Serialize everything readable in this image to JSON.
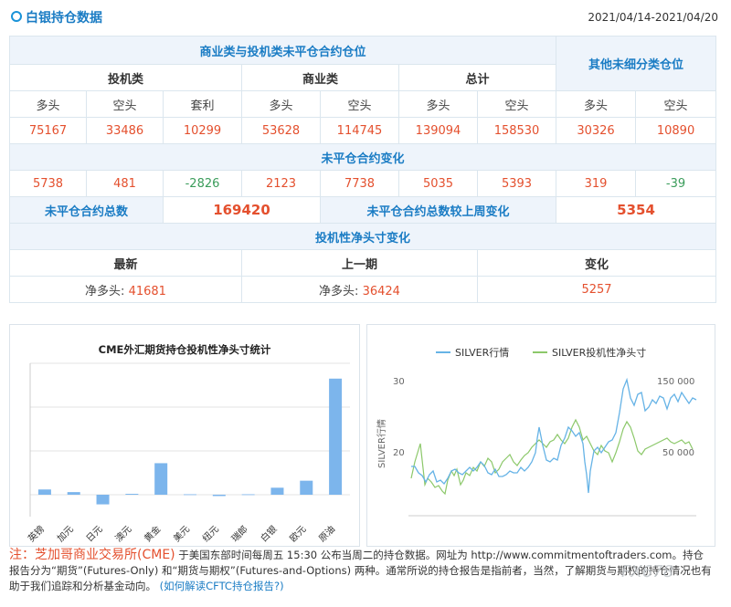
{
  "header": {
    "title": "白银持仓数据",
    "date_range": "2021/04/14-2021/04/20"
  },
  "table": {
    "group_title": "商业类与投机类未平仓合约仓位",
    "other_title": "其他未细分类仓位",
    "subgroups": [
      "投机类",
      "商业类",
      "总计"
    ],
    "columns": [
      "多头",
      "空头",
      "套利",
      "多头",
      "空头",
      "多头",
      "空头",
      "多头",
      "空头"
    ],
    "values": [
      "75167",
      "33486",
      "10299",
      "53628",
      "114745",
      "139094",
      "158530",
      "30326",
      "10890"
    ],
    "change_title": "未平仓合约变化",
    "changes": [
      "5738",
      "481",
      "-2826",
      "2123",
      "7738",
      "5035",
      "5393",
      "319",
      "-39"
    ],
    "total_label": "未平仓合约总数",
    "total_value": "169420",
    "total_change_label": "未平仓合约总数较上周变化",
    "total_change_value": "5354",
    "net_title": "投机性净头寸变化",
    "net_headers": [
      "最新",
      "上一期",
      "变化"
    ],
    "net_prefix": "净多头:",
    "net_latest": "41681",
    "net_previous": "36424",
    "net_change": "5257"
  },
  "chart_data": [
    {
      "type": "bar",
      "title": "CME外汇期货持仓投机性净头寸统计",
      "categories": [
        "英镑",
        "加元",
        "日元",
        "澳元",
        "黄金",
        "美元",
        "纽元",
        "瑞郎",
        "白银",
        "欧元",
        "原油"
      ],
      "values": [
        1.2,
        0.6,
        -2.2,
        0.2,
        7.2,
        0.1,
        -0.3,
        0.1,
        1.6,
        3.2,
        26.5
      ],
      "ylim": [
        -5,
        30
      ],
      "color": "#7cb5ec"
    },
    {
      "type": "line",
      "series": [
        {
          "name": "SILVER行情",
          "color": "#66b3e6"
        },
        {
          "name": "SILVER投机性净头寸",
          "color": "#8cc86a"
        }
      ],
      "ylabel": "SILVER行情",
      "left_ticks": [
        "30",
        "20"
      ],
      "right_ticks": [
        "150 000",
        "50 000"
      ]
    }
  ],
  "footer": {
    "note": "注：",
    "exchange": "芝加哥商业交易所(CME)",
    "text": "于美国东部时间每周五 15:30 公布当周二的持仓数据。网址为 http://www.commitmentoftraders.com。持仓报告分为“期货”(Futures-Only) 和“期货与期权”(Futures-and-Options) 两种。通常所说的持仓报告是指前者，当然，了解期货与期权的持仓情况也有助于我们追踪和分析基金动向。",
    "link": "(如何解读CFTC持仓报告?)"
  },
  "watermark": "FX678"
}
